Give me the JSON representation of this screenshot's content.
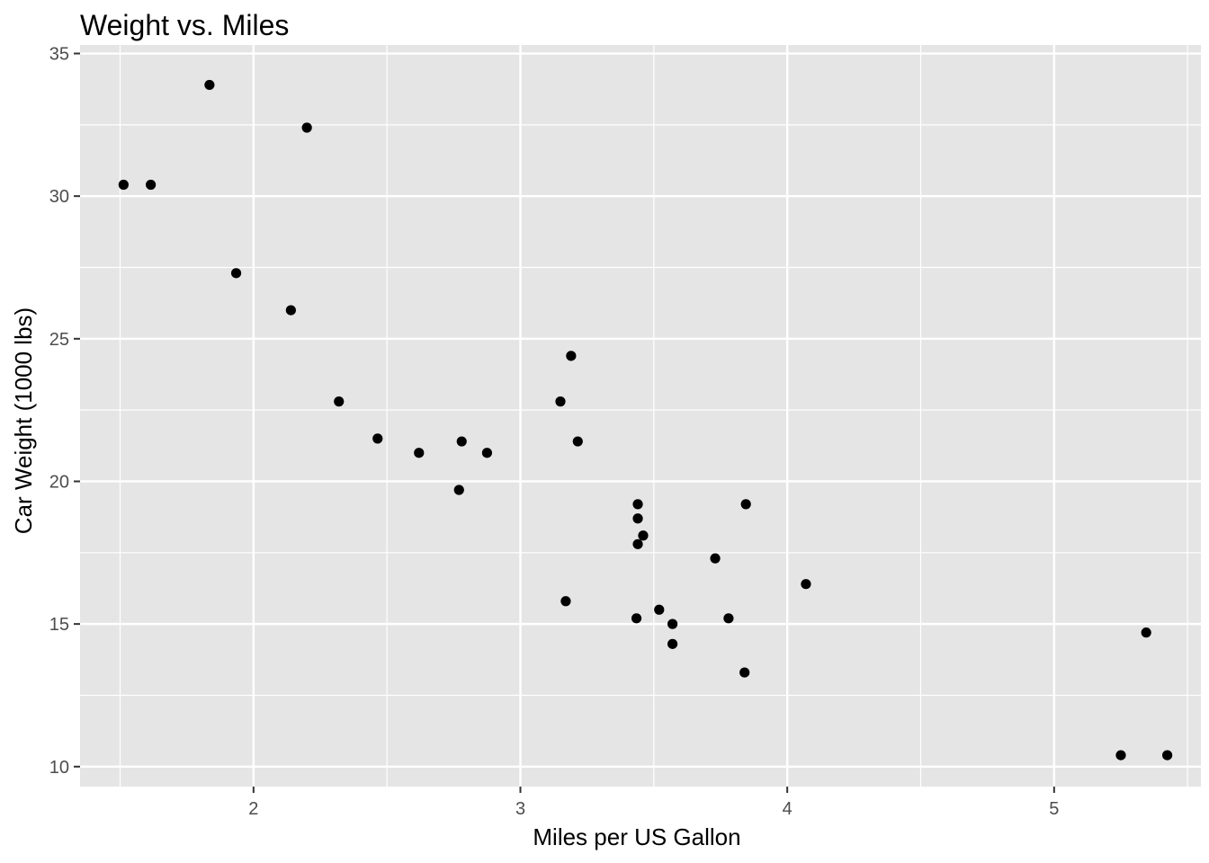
{
  "chart_data": {
    "type": "scatter",
    "title": "Weight vs. Miles",
    "xlabel": "Miles per US Gallon",
    "ylabel": "Car Weight (1000 lbs)",
    "xlim": [
      1.35,
      5.55
    ],
    "ylim": [
      9.3,
      35.3
    ],
    "x_ticks": [
      2,
      3,
      4,
      5
    ],
    "x_minor": [
      1.5,
      2.5,
      3.5,
      4.5,
      5.5
    ],
    "y_ticks": [
      10,
      15,
      20,
      25,
      30,
      35
    ],
    "y_minor": [
      12.5,
      17.5,
      22.5,
      27.5,
      32.5
    ],
    "grid": true,
    "colors": {
      "panel": "#e5e5e5",
      "grid": "#ffffff",
      "point": "#000000",
      "tick": "#333333"
    },
    "points": [
      {
        "x": 2.62,
        "y": 21.0
      },
      {
        "x": 2.875,
        "y": 21.0
      },
      {
        "x": 2.32,
        "y": 22.8
      },
      {
        "x": 3.215,
        "y": 21.4
      },
      {
        "x": 3.44,
        "y": 18.7
      },
      {
        "x": 3.46,
        "y": 18.1
      },
      {
        "x": 3.57,
        "y": 14.3
      },
      {
        "x": 3.19,
        "y": 24.4
      },
      {
        "x": 3.15,
        "y": 22.8
      },
      {
        "x": 3.44,
        "y": 19.2
      },
      {
        "x": 3.44,
        "y": 17.8
      },
      {
        "x": 4.07,
        "y": 16.4
      },
      {
        "x": 3.73,
        "y": 17.3
      },
      {
        "x": 3.78,
        "y": 15.2
      },
      {
        "x": 5.25,
        "y": 10.4
      },
      {
        "x": 5.424,
        "y": 10.4
      },
      {
        "x": 5.345,
        "y": 14.7
      },
      {
        "x": 2.2,
        "y": 32.4
      },
      {
        "x": 1.615,
        "y": 30.4
      },
      {
        "x": 1.835,
        "y": 33.9
      },
      {
        "x": 2.465,
        "y": 21.5
      },
      {
        "x": 3.52,
        "y": 15.5
      },
      {
        "x": 3.435,
        "y": 15.2
      },
      {
        "x": 3.84,
        "y": 13.3
      },
      {
        "x": 3.845,
        "y": 19.2
      },
      {
        "x": 1.935,
        "y": 27.3
      },
      {
        "x": 2.14,
        "y": 26.0
      },
      {
        "x": 1.513,
        "y": 30.4
      },
      {
        "x": 3.17,
        "y": 15.8
      },
      {
        "x": 2.77,
        "y": 19.7
      },
      {
        "x": 3.57,
        "y": 15.0
      },
      {
        "x": 2.78,
        "y": 21.4
      }
    ]
  }
}
